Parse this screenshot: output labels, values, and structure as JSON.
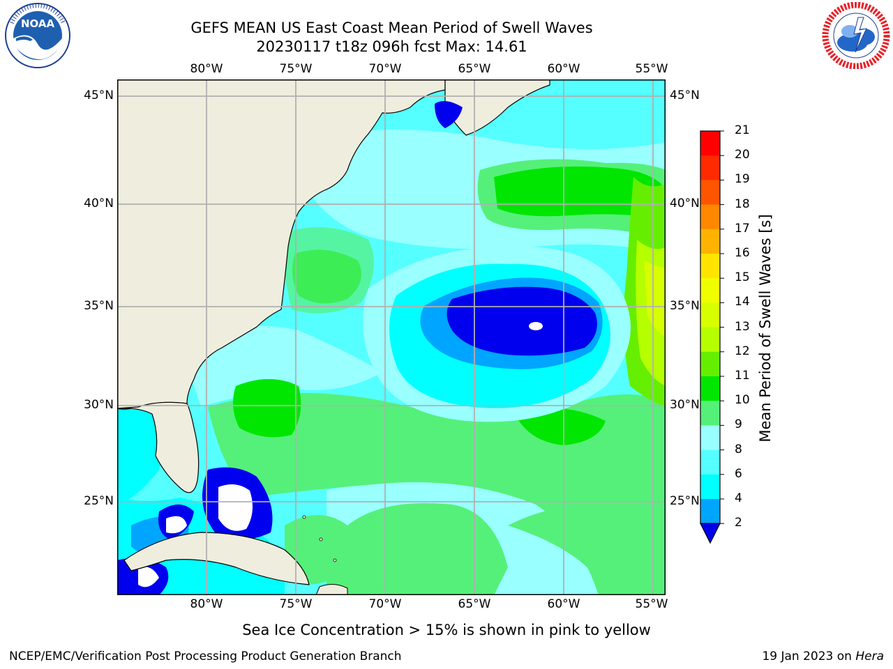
{
  "header": {
    "title_line1": "GEFS MEAN US East Coast Mean Period of Swell Waves",
    "title_line2": "20230117 t18z 096h fcst   Max: 14.61"
  },
  "logos": {
    "left": {
      "name": "NOAA",
      "text": "NOAA"
    },
    "right": {
      "name": "NATIONAL WEATHER SERVICE",
      "text": "NATIONAL WEATHER SERVICE"
    }
  },
  "map": {
    "lon_labels": [
      "80°W",
      "75°W",
      "70°W",
      "65°W",
      "60°W",
      "55°W"
    ],
    "lat_labels_left": [
      "45°N",
      "40°N",
      "35°N",
      "30°N",
      "25°N"
    ],
    "lat_labels_right": [
      "45°N",
      "40°N",
      "35°N",
      "30°N",
      "25°N"
    ],
    "colors": {
      "land": "#efeddd",
      "grid": "#b0b0b0",
      "coast": "#000000"
    }
  },
  "colorbar": {
    "label": "Mean Period of Swell Waves [s]",
    "ticks": [
      "21",
      "20",
      "19",
      "18",
      "17",
      "16",
      "15",
      "14",
      "13",
      "12",
      "11",
      "10",
      "9",
      "8",
      "6",
      "4",
      "2"
    ],
    "bins": [
      {
        "range": "20-21",
        "color": "#ff0000"
      },
      {
        "range": "19-20",
        "color": "#ff2a00"
      },
      {
        "range": "18-19",
        "color": "#ff5500"
      },
      {
        "range": "17-18",
        "color": "#ff8800"
      },
      {
        "range": "16-17",
        "color": "#ffb300"
      },
      {
        "range": "15-16",
        "color": "#ffe400"
      },
      {
        "range": "14-15",
        "color": "#f0ff00"
      },
      {
        "range": "13-14",
        "color": "#d8ff00"
      },
      {
        "range": "12-13",
        "color": "#b5ff00"
      },
      {
        "range": "11-12",
        "color": "#66ee00"
      },
      {
        "range": "10-11",
        "color": "#00e600"
      },
      {
        "range": "9-10",
        "color": "#55f07a"
      },
      {
        "range": "8-9",
        "color": "#99ffff"
      },
      {
        "range": "6-8",
        "color": "#55ffff"
      },
      {
        "range": "4-6",
        "color": "#00ffff"
      },
      {
        "range": "2-4",
        "color": "#00a5ff"
      },
      {
        "range": "<2",
        "color": "#0000ee"
      }
    ]
  },
  "footer": {
    "note": "Sea Ice Concentration > 15% is shown in pink to yellow",
    "credit": "NCEP/EMC/Verification Post Processing Product Generation Branch",
    "date": "19 Jan 2023 on",
    "host": "Hera"
  }
}
